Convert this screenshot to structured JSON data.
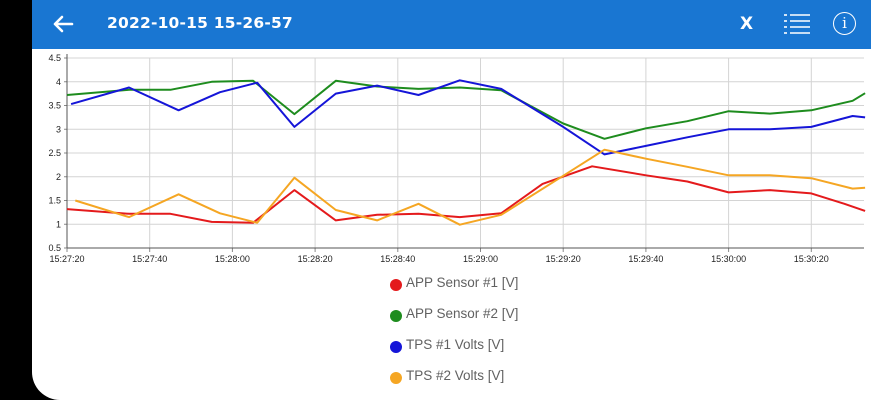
{
  "header": {
    "title": "2022-10-15 15-26-57",
    "back_icon": "arrow-left-icon",
    "close_label": "X",
    "list_icon": "list-icon",
    "info_label": "i"
  },
  "colors": {
    "app_bar": "#1976d2",
    "series": [
      "#e41a1c",
      "#1e8c1e",
      "#1515d8",
      "#f5a623"
    ]
  },
  "chart_data": {
    "type": "line",
    "x": [
      "15:27:20",
      "15:27:25",
      "15:27:30",
      "15:27:35",
      "15:27:40",
      "15:27:45",
      "15:27:50",
      "15:27:55",
      "15:28:00",
      "15:28:05",
      "15:28:10",
      "15:28:15",
      "15:28:20",
      "15:28:25",
      "15:28:30",
      "15:28:35",
      "15:28:40",
      "15:28:45",
      "15:28:50",
      "15:28:55",
      "15:29:00",
      "15:29:05",
      "15:29:10",
      "15:29:15",
      "15:29:20",
      "15:29:25",
      "15:29:30",
      "15:29:35",
      "15:29:40",
      "15:29:45",
      "15:29:50",
      "15:29:55",
      "15:30:00",
      "15:30:05",
      "15:30:10",
      "15:30:15",
      "15:30:20",
      "15:30:25",
      "15:30:30"
    ],
    "x_ticks": [
      "15:27:20",
      "15:27:40",
      "15:28:00",
      "15:28:20",
      "15:28:40",
      "15:29:00",
      "15:29:20",
      "15:29:40",
      "15:30:00",
      "15:30:20"
    ],
    "ylim": [
      0.5,
      4.5
    ],
    "y_ticks": [
      "0.5",
      "1",
      "1.5",
      "2",
      "2.5",
      "3",
      "3.5",
      "4",
      "4.5"
    ],
    "grid": true,
    "legend_position": "bottom",
    "series": [
      {
        "name": "APP Sensor #1 [V]",
        "points": [
          [
            "15:27:20",
            1.32
          ],
          [
            "15:27:35",
            1.22
          ],
          [
            "15:27:45",
            1.22
          ],
          [
            "15:27:55",
            1.05
          ],
          [
            "15:28:05",
            1.03
          ],
          [
            "15:28:15",
            1.72
          ],
          [
            "15:28:25",
            1.08
          ],
          [
            "15:28:35",
            1.2
          ],
          [
            "15:28:45",
            1.22
          ],
          [
            "15:28:55",
            1.15
          ],
          [
            "15:29:05",
            1.23
          ],
          [
            "15:29:15",
            1.85
          ],
          [
            "15:29:27",
            2.22
          ],
          [
            "15:29:40",
            2.03
          ],
          [
            "15:29:50",
            1.9
          ],
          [
            "15:30:00",
            1.67
          ],
          [
            "15:30:10",
            1.72
          ],
          [
            "15:30:20",
            1.65
          ],
          [
            "15:30:28",
            1.43
          ],
          [
            "15:30:33",
            1.28
          ]
        ]
      },
      {
        "name": "APP Sensor #2 [V]",
        "points": [
          [
            "15:27:20",
            3.72
          ],
          [
            "15:27:35",
            3.83
          ],
          [
            "15:27:45",
            3.83
          ],
          [
            "15:27:55",
            4.0
          ],
          [
            "15:28:05",
            4.02
          ],
          [
            "15:28:15",
            3.32
          ],
          [
            "15:28:25",
            4.02
          ],
          [
            "15:28:35",
            3.9
          ],
          [
            "15:28:45",
            3.85
          ],
          [
            "15:28:55",
            3.88
          ],
          [
            "15:29:05",
            3.82
          ],
          [
            "15:29:20",
            3.12
          ],
          [
            "15:29:30",
            2.8
          ],
          [
            "15:29:40",
            3.02
          ],
          [
            "15:29:50",
            3.17
          ],
          [
            "15:30:00",
            3.38
          ],
          [
            "15:30:10",
            3.33
          ],
          [
            "15:30:20",
            3.4
          ],
          [
            "15:30:30",
            3.6
          ],
          [
            "15:30:33",
            3.76
          ]
        ]
      },
      {
        "name": "TPS #1 Volts [V]",
        "points": [
          [
            "15:27:21",
            3.53
          ],
          [
            "15:27:35",
            3.88
          ],
          [
            "15:27:47",
            3.4
          ],
          [
            "15:27:57",
            3.78
          ],
          [
            "15:28:06",
            3.98
          ],
          [
            "15:28:15",
            3.05
          ],
          [
            "15:28:25",
            3.75
          ],
          [
            "15:28:35",
            3.92
          ],
          [
            "15:28:45",
            3.72
          ],
          [
            "15:28:55",
            4.03
          ],
          [
            "15:29:05",
            3.85
          ],
          [
            "15:29:20",
            3.05
          ],
          [
            "15:29:30",
            2.47
          ],
          [
            "15:29:40",
            2.65
          ],
          [
            "15:29:50",
            2.83
          ],
          [
            "15:30:00",
            3.0
          ],
          [
            "15:30:10",
            3.0
          ],
          [
            "15:30:20",
            3.05
          ],
          [
            "15:30:30",
            3.28
          ],
          [
            "15:30:33",
            3.25
          ]
        ]
      },
      {
        "name": "TPS #2 Volts [V]",
        "points": [
          [
            "15:27:22",
            1.5
          ],
          [
            "15:27:35",
            1.15
          ],
          [
            "15:27:47",
            1.63
          ],
          [
            "15:27:57",
            1.23
          ],
          [
            "15:28:06",
            1.03
          ],
          [
            "15:28:15",
            1.98
          ],
          [
            "15:28:25",
            1.3
          ],
          [
            "15:28:35",
            1.08
          ],
          [
            "15:28:45",
            1.43
          ],
          [
            "15:28:55",
            0.99
          ],
          [
            "15:29:05",
            1.2
          ],
          [
            "15:29:20",
            2.02
          ],
          [
            "15:29:30",
            2.57
          ],
          [
            "15:29:40",
            2.38
          ],
          [
            "15:29:50",
            2.21
          ],
          [
            "15:30:00",
            2.03
          ],
          [
            "15:30:10",
            2.03
          ],
          [
            "15:30:20",
            1.97
          ],
          [
            "15:30:30",
            1.75
          ],
          [
            "15:30:33",
            1.77
          ]
        ]
      }
    ]
  }
}
